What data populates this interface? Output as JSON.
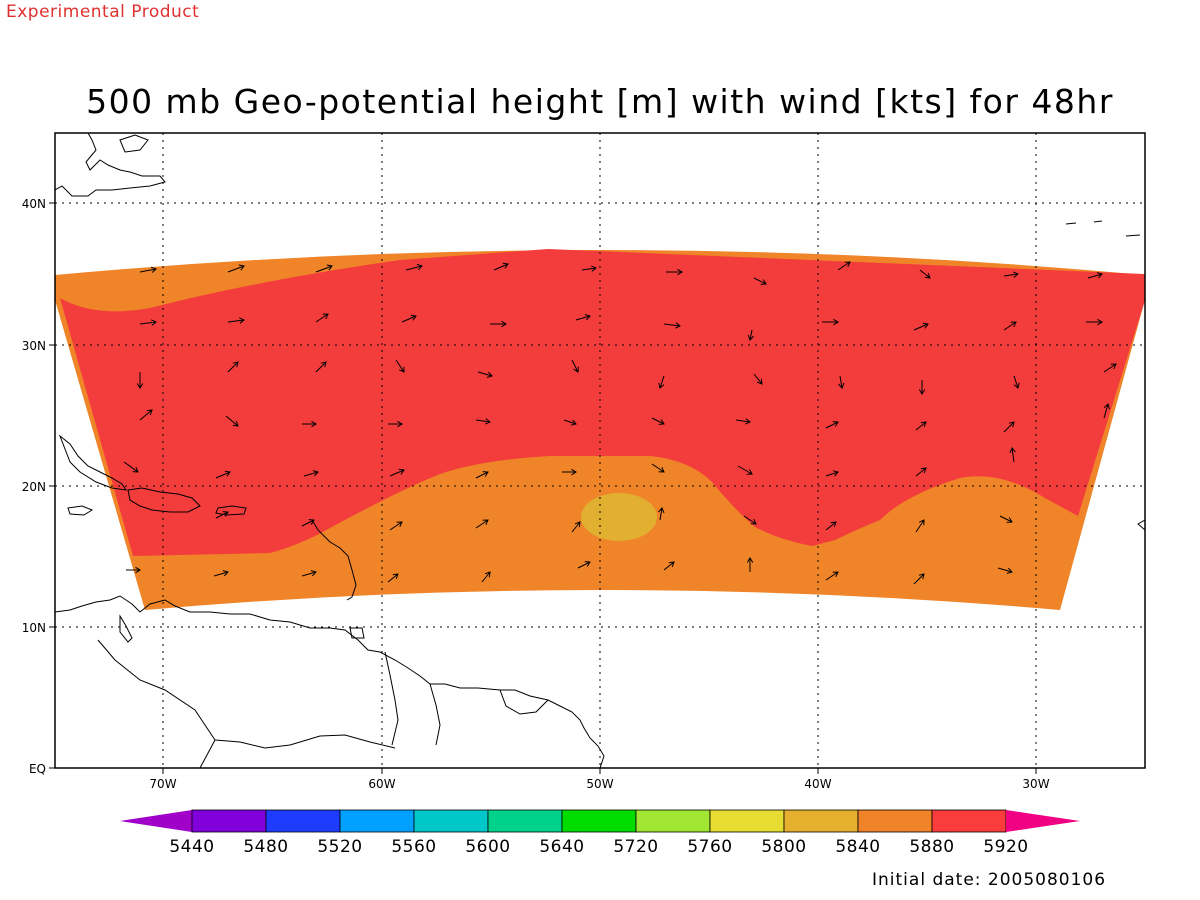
{
  "header": {
    "tag": "Experimental Product",
    "tag_color": "#e03030",
    "title": "500 mb Geo-potential height [m] with wind [kts] for 48hr"
  },
  "map": {
    "lat_labels": [
      "40N",
      "30N",
      "20N",
      "10N",
      "EQ"
    ],
    "lon_labels": [
      "70W",
      "60W",
      "50W",
      "40W",
      "30W"
    ],
    "fill_colors": {
      "band_5840_5880": "#ef8428",
      "band_5880_5920": "#f33c3c",
      "band_5800_5840": "#e1b030"
    }
  },
  "colorbar": {
    "labels": [
      "5440",
      "5480",
      "5520",
      "5560",
      "5600",
      "5640",
      "5720",
      "5760",
      "5800",
      "5840",
      "5880",
      "5920"
    ],
    "colors": [
      "#a000c8",
      "#8200dc",
      "#1e3cff",
      "#00a0ff",
      "#00c8c8",
      "#00d28c",
      "#00dc00",
      "#a0e632",
      "#e6dc32",
      "#e6af2d",
      "#f08228",
      "#fa3c3c",
      "#f00082"
    ]
  },
  "footer": {
    "initial_date": "Initial date: 2005080106"
  }
}
